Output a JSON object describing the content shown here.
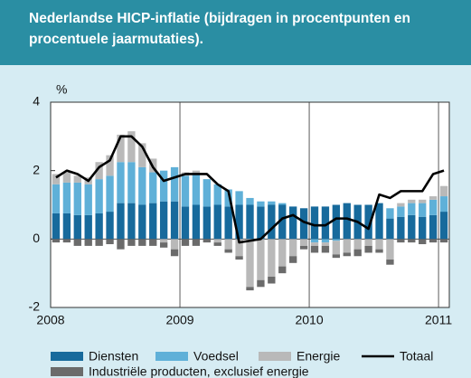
{
  "chart_data": {
    "type": "stacked-bar-line",
    "title": "Nederlandse HICP-inflatie (bijdragen in procentpunten en procentuele jaarmutaties).",
    "y_unit_label": "%",
    "categories": [
      "2008",
      null,
      null,
      null,
      null,
      null,
      null,
      null,
      null,
      null,
      null,
      null,
      "2009",
      null,
      null,
      null,
      null,
      null,
      null,
      null,
      null,
      null,
      null,
      null,
      "2010",
      null,
      null,
      null,
      null,
      null,
      null,
      null,
      null,
      null,
      null,
      null,
      "2011"
    ],
    "series": [
      {
        "name": "Diensten",
        "color": "#176a9c",
        "kind": "bar",
        "values": [
          0.75,
          0.75,
          0.7,
          0.7,
          0.75,
          0.8,
          1.05,
          1.05,
          1.0,
          1.05,
          1.1,
          1.1,
          0.95,
          1.0,
          0.95,
          1.0,
          0.95,
          1.0,
          1.0,
          0.95,
          1.0,
          1.0,
          0.95,
          0.9,
          0.95,
          0.95,
          1.0,
          1.05,
          1.0,
          1.0,
          1.05,
          0.6,
          0.65,
          0.7,
          0.65,
          0.7,
          0.8
        ]
      },
      {
        "name": "Voedsel",
        "color": "#5fb0d8",
        "kind": "bar",
        "values": [
          0.85,
          0.9,
          0.95,
          0.9,
          1.0,
          1.05,
          1.2,
          1.2,
          1.1,
          0.9,
          0.9,
          1.0,
          0.9,
          0.9,
          0.8,
          0.6,
          0.5,
          0.4,
          0.2,
          0.15,
          0.1,
          0.05,
          0.0,
          0.0,
          -0.1,
          -0.1,
          -0.05,
          0.0,
          0.0,
          0.0,
          0.0,
          0.3,
          0.3,
          0.35,
          0.4,
          0.45,
          0.45
        ]
      },
      {
        "name": "Energie",
        "color": "#b9b9b9",
        "kind": "bar",
        "values": [
          0.3,
          0.3,
          0.2,
          0.2,
          0.5,
          0.6,
          0.8,
          0.9,
          0.7,
          0.4,
          -0.1,
          -0.3,
          0.1,
          0.1,
          0.0,
          -0.1,
          -0.3,
          -0.5,
          -1.4,
          -1.2,
          -1.1,
          -0.8,
          -0.5,
          -0.2,
          -0.1,
          -0.1,
          -0.4,
          -0.4,
          -0.3,
          -0.2,
          -0.3,
          -0.6,
          0.1,
          0.1,
          0.1,
          0.1,
          0.3
        ]
      },
      {
        "name": "Industriële producten, exclusief energie",
        "color": "#6b6b6b",
        "kind": "bar",
        "values": [
          -0.1,
          -0.1,
          -0.2,
          -0.2,
          -0.2,
          -0.15,
          -0.3,
          -0.2,
          -0.2,
          -0.2,
          -0.15,
          -0.2,
          -0.2,
          -0.2,
          -0.1,
          -0.1,
          -0.1,
          -0.1,
          -0.1,
          -0.2,
          -0.2,
          -0.2,
          -0.2,
          -0.1,
          -0.2,
          -0.2,
          -0.1,
          -0.1,
          -0.2,
          -0.2,
          -0.1,
          -0.15,
          -0.1,
          -0.1,
          -0.15,
          -0.1,
          -0.1
        ]
      },
      {
        "name": "Totaal",
        "color": "#000000",
        "kind": "line",
        "values": [
          1.8,
          2.0,
          1.9,
          1.7,
          2.1,
          2.3,
          3.0,
          3.0,
          2.7,
          2.1,
          1.7,
          1.8,
          1.9,
          1.9,
          1.9,
          1.6,
          1.4,
          -0.1,
          -0.05,
          0.0,
          0.3,
          0.6,
          0.7,
          0.5,
          0.4,
          0.4,
          0.6,
          0.6,
          0.5,
          0.3,
          1.3,
          1.2,
          1.4,
          1.4,
          1.4,
          1.9,
          2.0
        ]
      }
    ],
    "ylim": [
      -2,
      4
    ],
    "yticks": [
      -2,
      0,
      2,
      4
    ]
  }
}
